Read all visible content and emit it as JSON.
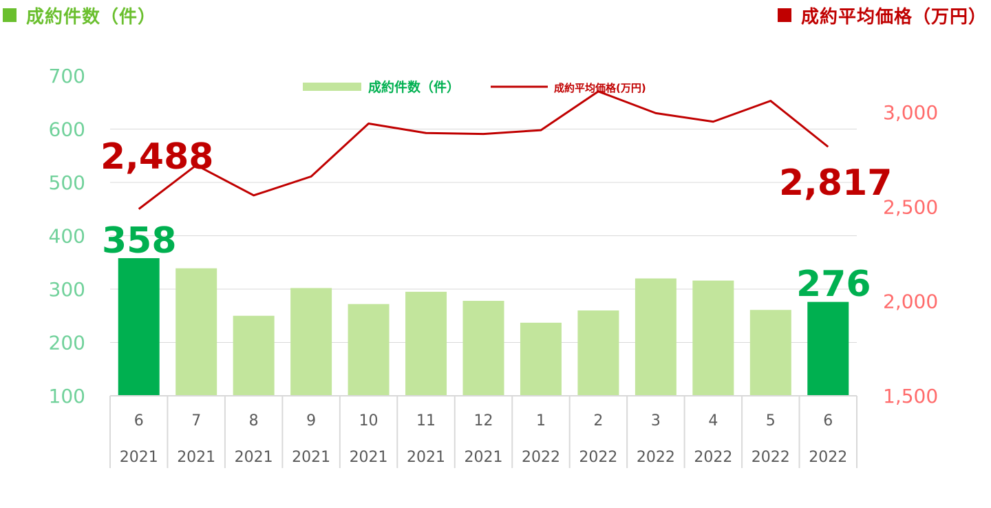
{
  "header": {
    "left_title": "成約件数（件）",
    "right_title": "成約平均価格（万円）",
    "left_color": "#6abf2e",
    "right_color": "#c00000"
  },
  "colors": {
    "bar_normal": "#c2e59c",
    "bar_highlight": "#00b050",
    "line": "#c00000",
    "left_axis_text": "#70d19a",
    "right_axis_text": "#ff6b6b",
    "grid": "#d9d9d9",
    "callout_green": "#00b050",
    "callout_red": "#c00000"
  },
  "chart_data": {
    "type": "bar+line",
    "categories": [
      "6",
      "7",
      "8",
      "9",
      "10",
      "11",
      "12",
      "1",
      "2",
      "3",
      "4",
      "5",
      "6"
    ],
    "years": [
      "2021",
      "2021",
      "2021",
      "2021",
      "2021",
      "2021",
      "2021",
      "2022",
      "2022",
      "2022",
      "2022",
      "2022",
      "2022"
    ],
    "series": [
      {
        "name": "成約件数（件）",
        "type": "bar",
        "axis": "left",
        "values": [
          358,
          339,
          250,
          302,
          272,
          295,
          278,
          237,
          260,
          320,
          316,
          261,
          276
        ],
        "highlight": [
          true,
          false,
          false,
          false,
          false,
          false,
          false,
          false,
          false,
          false,
          false,
          false,
          true
        ]
      },
      {
        "name": "成約平均価格(万円)",
        "type": "line",
        "axis": "right",
        "values": [
          2488,
          2720,
          2560,
          2660,
          2940,
          2890,
          2885,
          2905,
          3110,
          2995,
          2950,
          3060,
          2817
        ]
      }
    ],
    "left_axis": {
      "min": 100,
      "max": 700,
      "ticks": [
        "100",
        "200",
        "300",
        "400",
        "500",
        "600",
        "700"
      ]
    },
    "right_axis": {
      "min": 1500,
      "max": 3000,
      "ticks": [
        "1,500",
        "2,000",
        "2,500",
        "3,000"
      ]
    },
    "legend": {
      "position": "top-center"
    },
    "grid": true,
    "callouts": {
      "bar_first": "358",
      "bar_last": "276",
      "line_first": "2,488",
      "line_last": "2,817"
    }
  }
}
